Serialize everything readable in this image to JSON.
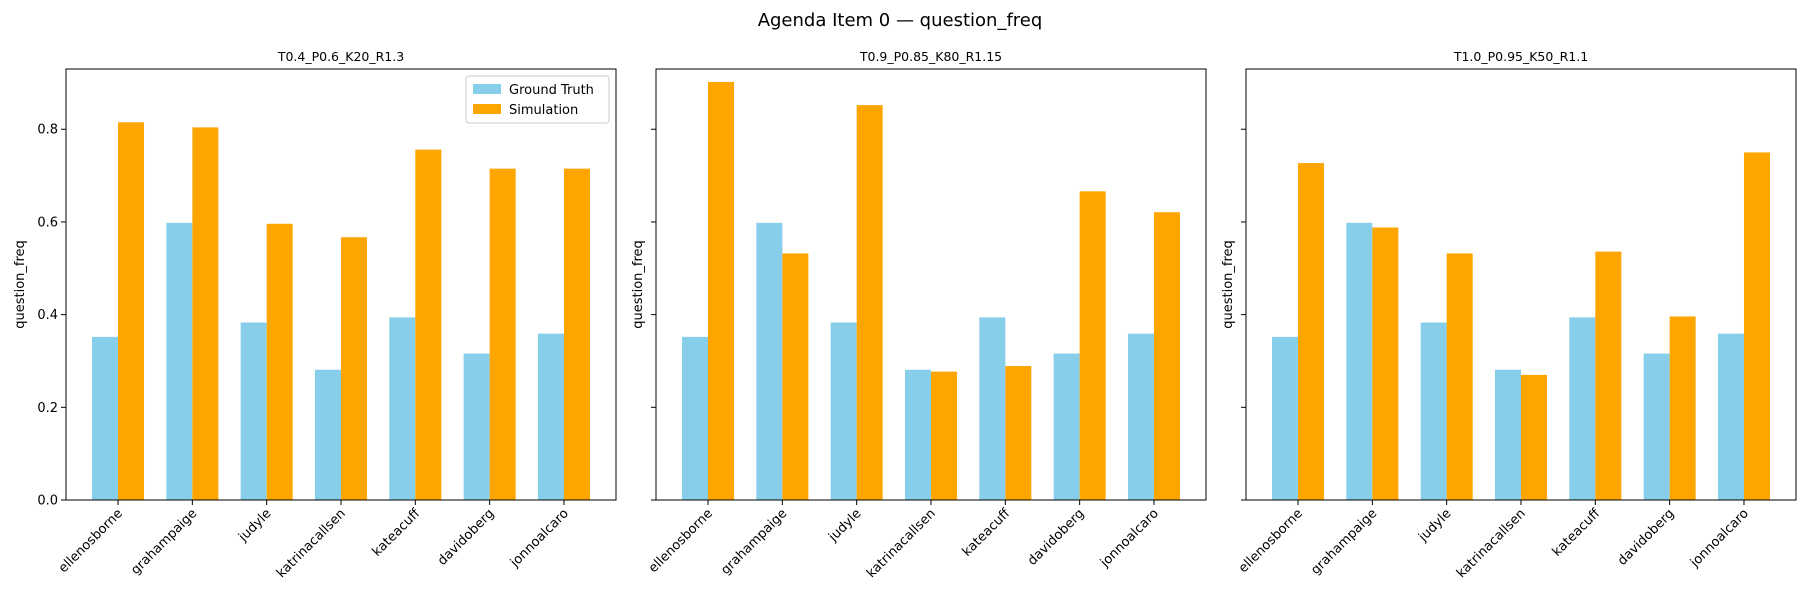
{
  "figure": {
    "title": "Agenda Item 0 — question_freq"
  },
  "legend": {
    "placement": "upper-right",
    "shown_in_panel": 0
  },
  "colors": {
    "ground_truth": "#87ceeb",
    "simulation": "#ffa500"
  },
  "chart_data": [
    {
      "type": "bar",
      "title": "T0.4_P0.6_K20_R1.3",
      "xlabel": "",
      "ylabel": "question_freq",
      "ylim": [
        0,
        0.93
      ],
      "yticks": [
        "0.0",
        "0.2",
        "0.4",
        "0.6",
        "0.8"
      ],
      "categories": [
        "ellenosborne",
        "grahampaige",
        "judyle",
        "katrinacallsen",
        "kateacuff",
        "davidoberg",
        "jonnoalcaro"
      ],
      "series": [
        {
          "name": "Ground Truth",
          "values": [
            0.352,
            0.598,
            0.383,
            0.281,
            0.394,
            0.316,
            0.359
          ]
        },
        {
          "name": "Simulation",
          "values": [
            0.815,
            0.804,
            0.596,
            0.567,
            0.756,
            0.715,
            0.715
          ]
        }
      ]
    },
    {
      "type": "bar",
      "title": "T0.9_P0.85_K80_R1.15",
      "xlabel": "",
      "ylabel": "question_freq",
      "ylim": [
        0,
        0.93
      ],
      "yticks": [
        "0.0",
        "0.2",
        "0.4",
        "0.6",
        "0.8"
      ],
      "categories": [
        "ellenosborne",
        "grahampaige",
        "judyle",
        "katrinacallsen",
        "kateacuff",
        "davidoberg",
        "jonnoalcaro"
      ],
      "series": [
        {
          "name": "Ground Truth",
          "values": [
            0.352,
            0.598,
            0.383,
            0.281,
            0.394,
            0.316,
            0.359
          ]
        },
        {
          "name": "Simulation",
          "values": [
            0.902,
            0.532,
            0.852,
            0.277,
            0.289,
            0.666,
            0.621
          ]
        }
      ]
    },
    {
      "type": "bar",
      "title": "T1.0_P0.95_K50_R1.1",
      "xlabel": "",
      "ylabel": "question_freq",
      "ylim": [
        0,
        0.93
      ],
      "yticks": [
        "0.0",
        "0.2",
        "0.4",
        "0.6",
        "0.8"
      ],
      "categories": [
        "ellenosborne",
        "grahampaige",
        "judyle",
        "katrinacallsen",
        "kateacuff",
        "davidoberg",
        "jonnoalcaro"
      ],
      "series": [
        {
          "name": "Ground Truth",
          "values": [
            0.352,
            0.598,
            0.383,
            0.281,
            0.394,
            0.316,
            0.359
          ]
        },
        {
          "name": "Simulation",
          "values": [
            0.727,
            0.588,
            0.532,
            0.27,
            0.536,
            0.396,
            0.75
          ]
        }
      ]
    }
  ]
}
